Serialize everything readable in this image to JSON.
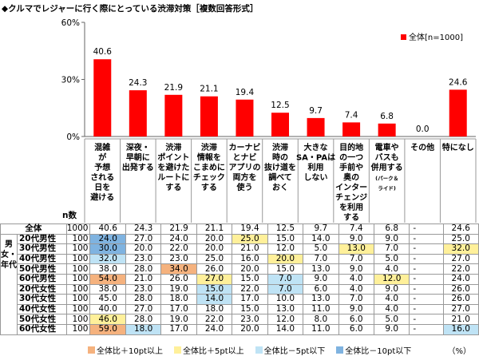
{
  "title": "◆クルマでレジャーに行く際にとっている渋滞対策［複数回答形式］",
  "chart_data": {
    "type": "bar",
    "y_ticks": [
      "60%",
      "30%",
      "0%"
    ],
    "ylim": [
      0,
      60
    ],
    "legend": "全体[n=1000]",
    "categories": [
      "混雑が予想される日を避ける",
      "深夜・早朝に出発する",
      "渋滞ポイントを避けたルートにする",
      "渋滞情報をこまめにチェックする",
      "カーナビとナビアプリの両方を使う",
      "渋滞時の抜け道を調べておく",
      "大きなSA・PAは利用しない",
      "目的地の一つ手前や奥のインターチェンジを利用する",
      "電車やバスも併用する",
      "その他",
      "特になし"
    ],
    "category_lines": [
      [
        "混雑",
        "が",
        "予想",
        "される",
        "日を",
        "避ける"
      ],
      [
        "深夜・",
        "早朝に",
        "出発する"
      ],
      [
        "渋滞",
        "ポイント",
        "を避けた",
        "ルートに",
        "する"
      ],
      [
        "渋滞",
        "情報を",
        "こまめに",
        "チェック",
        "する"
      ],
      [
        "カーナビ",
        "とナビ",
        "アプリの",
        "両方を",
        "使う"
      ],
      [
        "渋滞",
        "時の",
        "抜け道を",
        "調べて",
        "おく"
      ],
      [
        "大きな",
        "SA・PAは",
        "利用",
        "しない"
      ],
      [
        "目的地",
        "の一つ",
        "手前や",
        "奥の",
        "インター",
        "チェンジ",
        "を利用",
        "する"
      ],
      [
        "電車や",
        "バスも",
        "併用する",
        "(パーク＆",
        "ライド)"
      ],
      [
        "その他"
      ],
      [
        "特になし"
      ]
    ],
    "values": [
      40.6,
      24.3,
      21.9,
      21.1,
      19.4,
      12.5,
      9.7,
      7.4,
      6.8,
      0.0,
      24.6
    ],
    "value_labels": [
      "40.6",
      "24.3",
      "21.9",
      "21.1",
      "19.4",
      "12.5",
      "9.7",
      "7.4",
      "6.8",
      "0.0",
      "24.6"
    ],
    "bar_color": "#ff0000"
  },
  "table": {
    "n_header": "n数",
    "segment_label": "男女・年代",
    "rows": [
      {
        "label": "全体",
        "n": "1000",
        "values": [
          "40.6",
          "24.3",
          "21.9",
          "21.1",
          "19.4",
          "12.5",
          "9.7",
          "7.4",
          "6.8",
          "-",
          "24.6"
        ],
        "hl": [
          "",
          "",
          "",
          "",
          "",
          "",
          "",
          "",
          "",
          "",
          ""
        ]
      },
      {
        "label": "20代男性",
        "n": "100",
        "values": [
          "24.0",
          "27.0",
          "24.0",
          "20.0",
          "25.0",
          "15.0",
          "14.0",
          "9.0",
          "9.0",
          "-",
          "25.0"
        ],
        "hl": [
          "lo10",
          "",
          "",
          "",
          "hi5",
          "",
          "",
          "",
          "",
          "",
          ""
        ]
      },
      {
        "label": "30代男性",
        "n": "100",
        "values": [
          "30.0",
          "20.0",
          "22.0",
          "20.0",
          "21.0",
          "12.0",
          "5.0",
          "13.0",
          "7.0",
          "-",
          "32.0"
        ],
        "hl": [
          "lo10",
          "",
          "",
          "",
          "",
          "",
          "",
          "hi5",
          "",
          "",
          "hi5"
        ]
      },
      {
        "label": "40代男性",
        "n": "100",
        "values": [
          "32.0",
          "23.0",
          "23.0",
          "25.0",
          "16.0",
          "20.0",
          "7.0",
          "7.0",
          "5.0",
          "-",
          "27.0"
        ],
        "hl": [
          "lo5",
          "",
          "",
          "",
          "",
          "hi5",
          "",
          "",
          "",
          "",
          ""
        ]
      },
      {
        "label": "50代男性",
        "n": "100",
        "values": [
          "38.0",
          "28.0",
          "34.0",
          "26.0",
          "20.0",
          "15.0",
          "13.0",
          "9.0",
          "4.0",
          "-",
          "22.0"
        ],
        "hl": [
          "",
          "",
          "hi10",
          "",
          "",
          "",
          "",
          "",
          "",
          "",
          ""
        ]
      },
      {
        "label": "60代男性",
        "n": "100",
        "values": [
          "54.0",
          "21.0",
          "26.0",
          "27.0",
          "15.0",
          "7.0",
          "9.0",
          "4.0",
          "12.0",
          "-",
          "24.0"
        ],
        "hl": [
          "hi10",
          "",
          "",
          "hi5",
          "",
          "lo5",
          "",
          "",
          "hi5",
          "",
          ""
        ]
      },
      {
        "label": "20代女性",
        "n": "100",
        "values": [
          "38.0",
          "23.0",
          "19.0",
          "15.0",
          "22.0",
          "7.0",
          "6.0",
          "4.0",
          "9.0",
          "-",
          "26.0"
        ],
        "hl": [
          "",
          "",
          "",
          "lo5",
          "",
          "lo5",
          "",
          "",
          "",
          "",
          ""
        ]
      },
      {
        "label": "30代女性",
        "n": "100",
        "values": [
          "45.0",
          "28.0",
          "18.0",
          "14.0",
          "17.0",
          "10.0",
          "13.0",
          "7.0",
          "4.0",
          "-",
          "26.0"
        ],
        "hl": [
          "",
          "",
          "",
          "lo5",
          "",
          "",
          "",
          "",
          "",
          "",
          ""
        ]
      },
      {
        "label": "40代女性",
        "n": "100",
        "values": [
          "40.0",
          "27.0",
          "17.0",
          "18.0",
          "15.0",
          "13.0",
          "11.0",
          "9.0",
          "4.0",
          "-",
          "27.0"
        ],
        "hl": [
          "",
          "",
          "",
          "",
          "",
          "",
          "",
          "",
          "",
          "",
          ""
        ]
      },
      {
        "label": "50代女性",
        "n": "100",
        "values": [
          "46.0",
          "28.0",
          "19.0",
          "22.0",
          "23.0",
          "12.0",
          "8.0",
          "6.0",
          "5.0",
          "-",
          "21.0"
        ],
        "hl": [
          "hi5",
          "",
          "",
          "",
          "",
          "",
          "",
          "",
          "",
          "",
          ""
        ]
      },
      {
        "label": "60代女性",
        "n": "100",
        "values": [
          "59.0",
          "18.0",
          "17.0",
          "24.0",
          "20.0",
          "14.0",
          "11.0",
          "6.0",
          "9.0",
          "-",
          "16.0"
        ],
        "hl": [
          "hi10",
          "lo5",
          "",
          "",
          "",
          "",
          "",
          "",
          "",
          "",
          "lo5"
        ]
      }
    ]
  },
  "legend_items": [
    {
      "label": "全体比＋10pt以上",
      "color": "#f5b27e"
    },
    {
      "label": "全体比＋5pt以上",
      "color": "#fff09a"
    },
    {
      "label": "全体比－5pt以下",
      "color": "#bfe3f5"
    },
    {
      "label": "全体比－10pt以下",
      "color": "#7fb3e0"
    }
  ],
  "unit": "（%）"
}
